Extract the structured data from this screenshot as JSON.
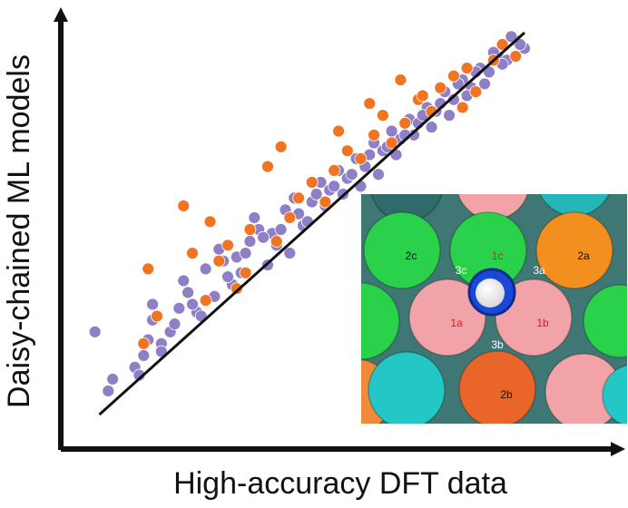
{
  "chart_data": {
    "type": "scatter",
    "title": "",
    "xlabel": "High-accuracy DFT data",
    "ylabel": "Daisy-chained ML models",
    "xlim": [
      0,
      1
    ],
    "ylim": [
      0,
      1
    ],
    "grid": false,
    "ticks": false,
    "fit_line": {
      "x": [
        0.04,
        1.0
      ],
      "y": [
        0.03,
        1.0
      ],
      "color": "#111111"
    },
    "series": [
      {
        "color": "#8e7fc7",
        "x": [
          0.03,
          0.07,
          0.06,
          0.12,
          0.14,
          0.13,
          0.16,
          0.18,
          0.16,
          0.2,
          0.22,
          0.18,
          0.24,
          0.26,
          0.23,
          0.28,
          0.3,
          0.27,
          0.32,
          0.34,
          0.31,
          0.36,
          0.38,
          0.35,
          0.4,
          0.42,
          0.39,
          0.44,
          0.46,
          0.43,
          0.48,
          0.5,
          0.47,
          0.52,
          0.54,
          0.51,
          0.56,
          0.58,
          0.55,
          0.6,
          0.62,
          0.59,
          0.64,
          0.66,
          0.63,
          0.68,
          0.7,
          0.67,
          0.72,
          0.74,
          0.71,
          0.76,
          0.78,
          0.75,
          0.8,
          0.82,
          0.79,
          0.84,
          0.86,
          0.83,
          0.88,
          0.9,
          0.87,
          0.92,
          0.94,
          0.91,
          0.96,
          0.98,
          0.95,
          1.0,
          0.97,
          0.15,
          0.21,
          0.25,
          0.33,
          0.37,
          0.41,
          0.45,
          0.49,
          0.53,
          0.57,
          0.61,
          0.65,
          0.69,
          0.73,
          0.77,
          0.81,
          0.85,
          0.89,
          0.93,
          0.99
        ],
        "y": [
          0.24,
          0.12,
          0.09,
          0.15,
          0.18,
          0.13,
          0.31,
          0.21,
          0.27,
          0.24,
          0.3,
          0.19,
          0.34,
          0.29,
          0.37,
          0.4,
          0.33,
          0.28,
          0.42,
          0.36,
          0.45,
          0.39,
          0.47,
          0.43,
          0.5,
          0.41,
          0.53,
          0.46,
          0.55,
          0.49,
          0.58,
          0.51,
          0.44,
          0.57,
          0.62,
          0.52,
          0.6,
          0.65,
          0.56,
          0.63,
          0.68,
          0.59,
          0.66,
          0.72,
          0.61,
          0.7,
          0.75,
          0.64,
          0.73,
          0.78,
          0.69,
          0.77,
          0.81,
          0.74,
          0.8,
          0.85,
          0.76,
          0.83,
          0.88,
          0.79,
          0.86,
          0.91,
          0.84,
          0.9,
          0.94,
          0.87,
          0.93,
          0.98,
          0.92,
          0.96,
          0.99,
          0.22,
          0.26,
          0.31,
          0.38,
          0.44,
          0.48,
          0.5,
          0.54,
          0.59,
          0.61,
          0.64,
          0.69,
          0.71,
          0.74,
          0.79,
          0.82,
          0.87,
          0.9,
          0.95,
          0.97
        ]
      },
      {
        "color": "#f07422",
        "x": [
          0.15,
          0.17,
          0.14,
          0.23,
          0.29,
          0.25,
          0.31,
          0.35,
          0.33,
          0.38,
          0.42,
          0.44,
          0.47,
          0.49,
          0.52,
          0.55,
          0.57,
          0.6,
          0.63,
          0.66,
          0.68,
          0.7,
          0.73,
          0.76,
          0.79,
          0.81,
          0.84,
          0.87,
          0.89,
          0.93,
          0.95,
          0.98,
          0.28,
          0.45,
          0.37,
          0.58,
          0.65,
          0.72,
          0.77,
          0.86
        ],
        "y": [
          0.4,
          0.28,
          0.21,
          0.56,
          0.52,
          0.44,
          0.42,
          0.35,
          0.46,
          0.5,
          0.66,
          0.47,
          0.53,
          0.58,
          0.62,
          0.57,
          0.65,
          0.7,
          0.68,
          0.74,
          0.79,
          0.72,
          0.77,
          0.83,
          0.8,
          0.86,
          0.89,
          0.91,
          0.85,
          0.93,
          0.97,
          0.94,
          0.32,
          0.71,
          0.39,
          0.75,
          0.82,
          0.88,
          0.84,
          0.81
        ]
      }
    ]
  },
  "inset": {
    "spheres": [
      {
        "label": "",
        "color": "#2f6b6b"
      },
      {
        "label": "",
        "color": "#f2a3a8"
      },
      {
        "label": "",
        "color": "#25b7b7"
      },
      {
        "label": "2c",
        "color": "#2ad14a"
      },
      {
        "label": "1c",
        "color": "#2ad14a"
      },
      {
        "label": "2a",
        "color": "#f28f1e"
      },
      {
        "label": "",
        "color": "#2ad14a"
      },
      {
        "label": "1a",
        "color": "#f2a3a8"
      },
      {
        "label": "1b",
        "color": "#f2a3a8"
      },
      {
        "label": "",
        "color": "#2ad14a"
      },
      {
        "label": "",
        "color": "#f08a3b"
      },
      {
        "label": "",
        "color": "#25c6c6"
      },
      {
        "label": "2b",
        "color": "#e9652a"
      },
      {
        "label": "",
        "color": "#f2a3a8"
      },
      {
        "label": "",
        "color": "#25c6c6"
      }
    ],
    "site_labels": [
      "3c",
      "3a",
      "3b"
    ],
    "label_colors": {
      "first_shell": "#d62020",
      "second_shell": "#111111",
      "third_shell": "#ffffff"
    },
    "adsorbate_colors": {
      "ring": "#1a49d8",
      "core": "#ffffff"
    }
  }
}
